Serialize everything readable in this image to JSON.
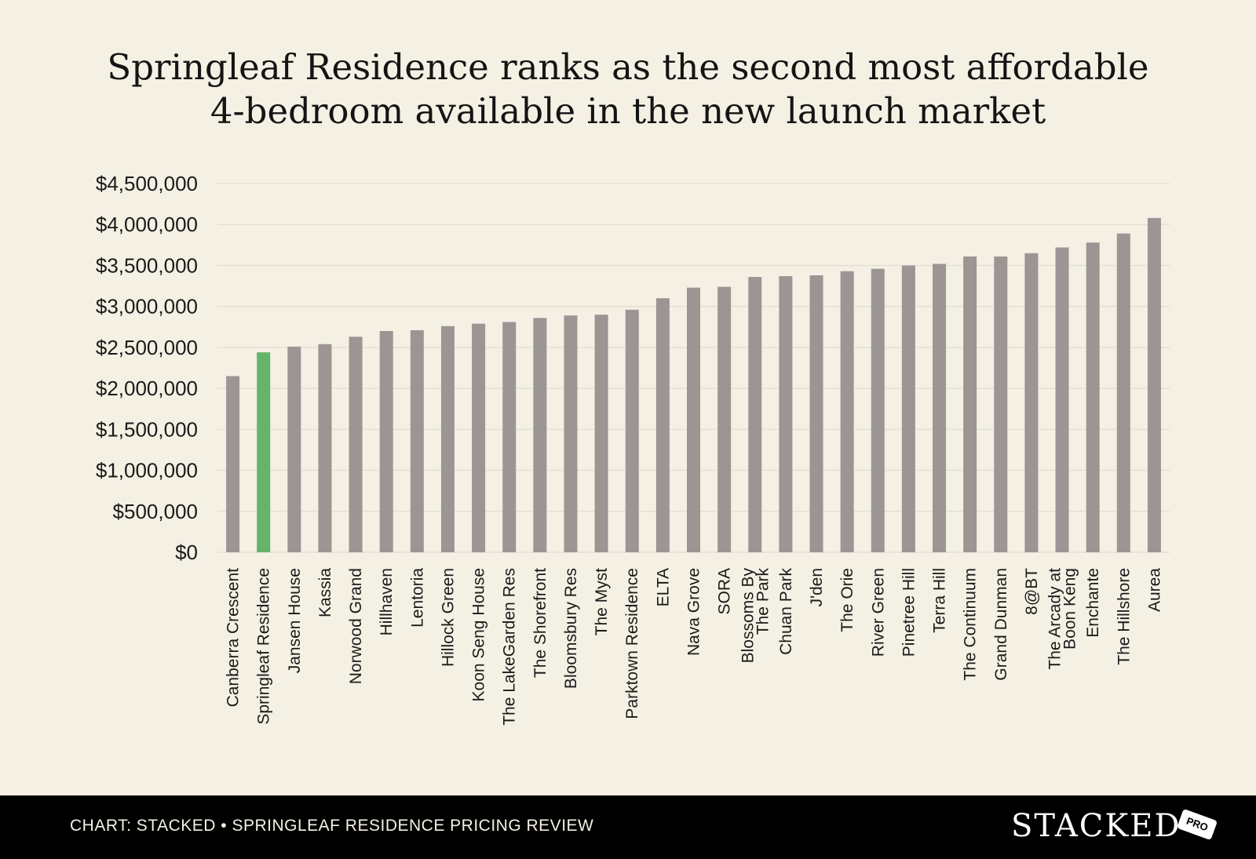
{
  "chart_data": {
    "type": "bar",
    "title": [
      "Springleaf Residence ranks as the second most affordable",
      "4-bedroom available in the new launch market"
    ],
    "categories": [
      "Canberra Crescent",
      "Springleaf Residence",
      "Jansen House",
      "Kassia",
      "Norwood Grand",
      "Hillhaven",
      "Lentoria",
      "Hillock Green",
      "Koon Seng House",
      "The LakeGarden Res",
      "The Shorefront",
      "Bloomsbury Res",
      "The Myst",
      "Parktown Residence",
      "ELTA",
      "Nava Grove",
      "SORA",
      "Blossoms By The Park",
      "Chuan Park",
      "J'den",
      "The Orie",
      "River Green",
      "Pinetree Hill",
      "Terra Hill",
      "The Continuum",
      "Grand Dunman",
      "8@BT",
      "The Arcady at Boon Keng",
      "Enchante",
      "The Hillshore",
      "Aurea"
    ],
    "category_lines": [
      [
        "Canberra Crescent"
      ],
      [
        "Springleaf Residence"
      ],
      [
        "Jansen House"
      ],
      [
        "Kassia"
      ],
      [
        "Norwood Grand"
      ],
      [
        "Hillhaven"
      ],
      [
        "Lentoria"
      ],
      [
        "Hillock Green"
      ],
      [
        "Koon Seng House"
      ],
      [
        "The LakeGarden Res"
      ],
      [
        "The Shorefront"
      ],
      [
        "Bloomsbury Res"
      ],
      [
        "The Myst"
      ],
      [
        "Parktown Residence"
      ],
      [
        "ELTA"
      ],
      [
        "Nava Grove"
      ],
      [
        "SORA"
      ],
      [
        "Blossoms By",
        "The Park"
      ],
      [
        "Chuan Park"
      ],
      [
        "J'den"
      ],
      [
        "The Orie"
      ],
      [
        "River Green"
      ],
      [
        "Pinetree Hill"
      ],
      [
        "Terra Hill"
      ],
      [
        "The Continuum"
      ],
      [
        "Grand Dunman"
      ],
      [
        "8@BT"
      ],
      [
        "The Arcady at",
        "Boon Keng"
      ],
      [
        "Enchante"
      ],
      [
        "The Hillshore"
      ],
      [
        "Aurea"
      ]
    ],
    "values": [
      2150000,
      2440000,
      2510000,
      2540000,
      2630000,
      2700000,
      2710000,
      2760000,
      2790000,
      2810000,
      2860000,
      2890000,
      2900000,
      2960000,
      3100000,
      3230000,
      3240000,
      3360000,
      3370000,
      3380000,
      3430000,
      3460000,
      3500000,
      3520000,
      3610000,
      3610000,
      3650000,
      3720000,
      3780000,
      3890000,
      4080000
    ],
    "highlight_index": 1,
    "yticks": [
      "$4,500,000",
      "$4,000,000",
      "$3,500,000",
      "$3,000,000",
      "$2,500,000",
      "$2,000,000",
      "$1,500,000",
      "$1,000,000",
      "$500,000",
      "$0"
    ],
    "ylim": [
      0,
      4500000
    ],
    "grid": true,
    "colors": {
      "bar": "#9b9593",
      "highlight": "#65b46a",
      "grid": "#e4e0d4",
      "text": "#1a1a1a"
    }
  },
  "footer": {
    "source": "CHART: STACKED • SPRINGLEAF RESIDENCE PRICING REVIEW",
    "logo_word": "STACKED",
    "logo_badge": "PRO"
  }
}
